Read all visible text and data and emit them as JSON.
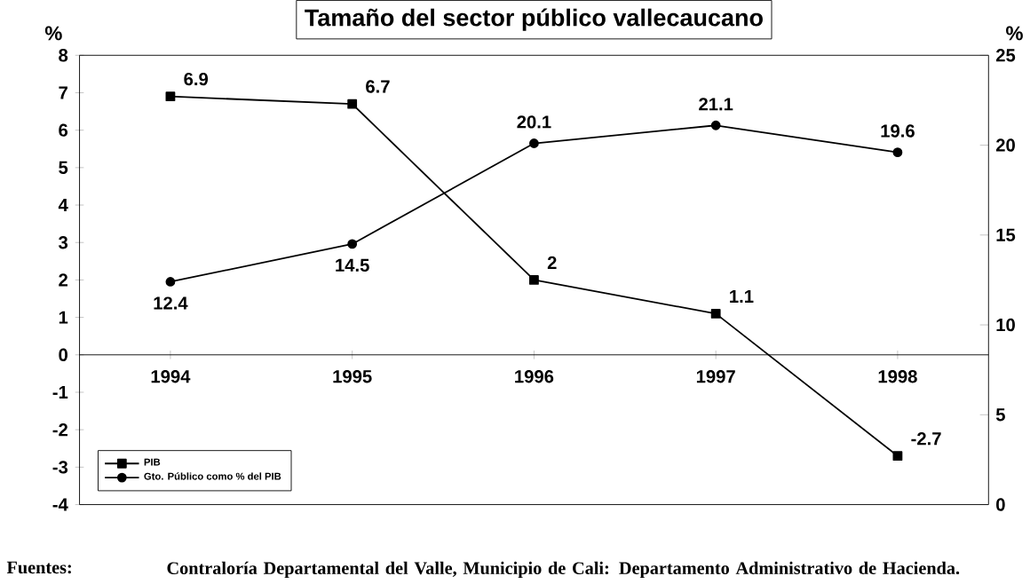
{
  "chart_data": {
    "type": "line",
    "title": "Tamaño del sector público vallecaucano",
    "ylabel": "%",
    "y2label": "%",
    "categories": [
      "1994",
      "1995",
      "1996",
      "1997",
      "1998"
    ],
    "series": [
      {
        "name": "PIB",
        "color": "#000000",
        "marker": "square",
        "values": [
          6.9,
          6.7,
          2,
          1.1,
          -2.7
        ]
      },
      {
        "name": "Gto. Público como % del PIB",
        "color": "#000000",
        "marker": "circle",
        "axis": "y2",
        "values": [
          12.4,
          14.5,
          20.1,
          21.1,
          19.6
        ]
      }
    ],
    "ylim": [
      -4,
      8
    ],
    "yticks": [
      -4,
      -3,
      -2,
      -1,
      0,
      1,
      2,
      3,
      4,
      5,
      6,
      7,
      8
    ],
    "y2lim": [
      0,
      25
    ],
    "y2ticks": [
      0,
      5,
      10,
      15,
      20,
      25
    ],
    "data_labels": true,
    "legend": "bottom left",
    "grid": false,
    "annotations": [
      "Fuentes:",
      "Contraloría Departamental del Valle, Municipio de Cali: Departamento Administrativo de Hacienda."
    ]
  }
}
